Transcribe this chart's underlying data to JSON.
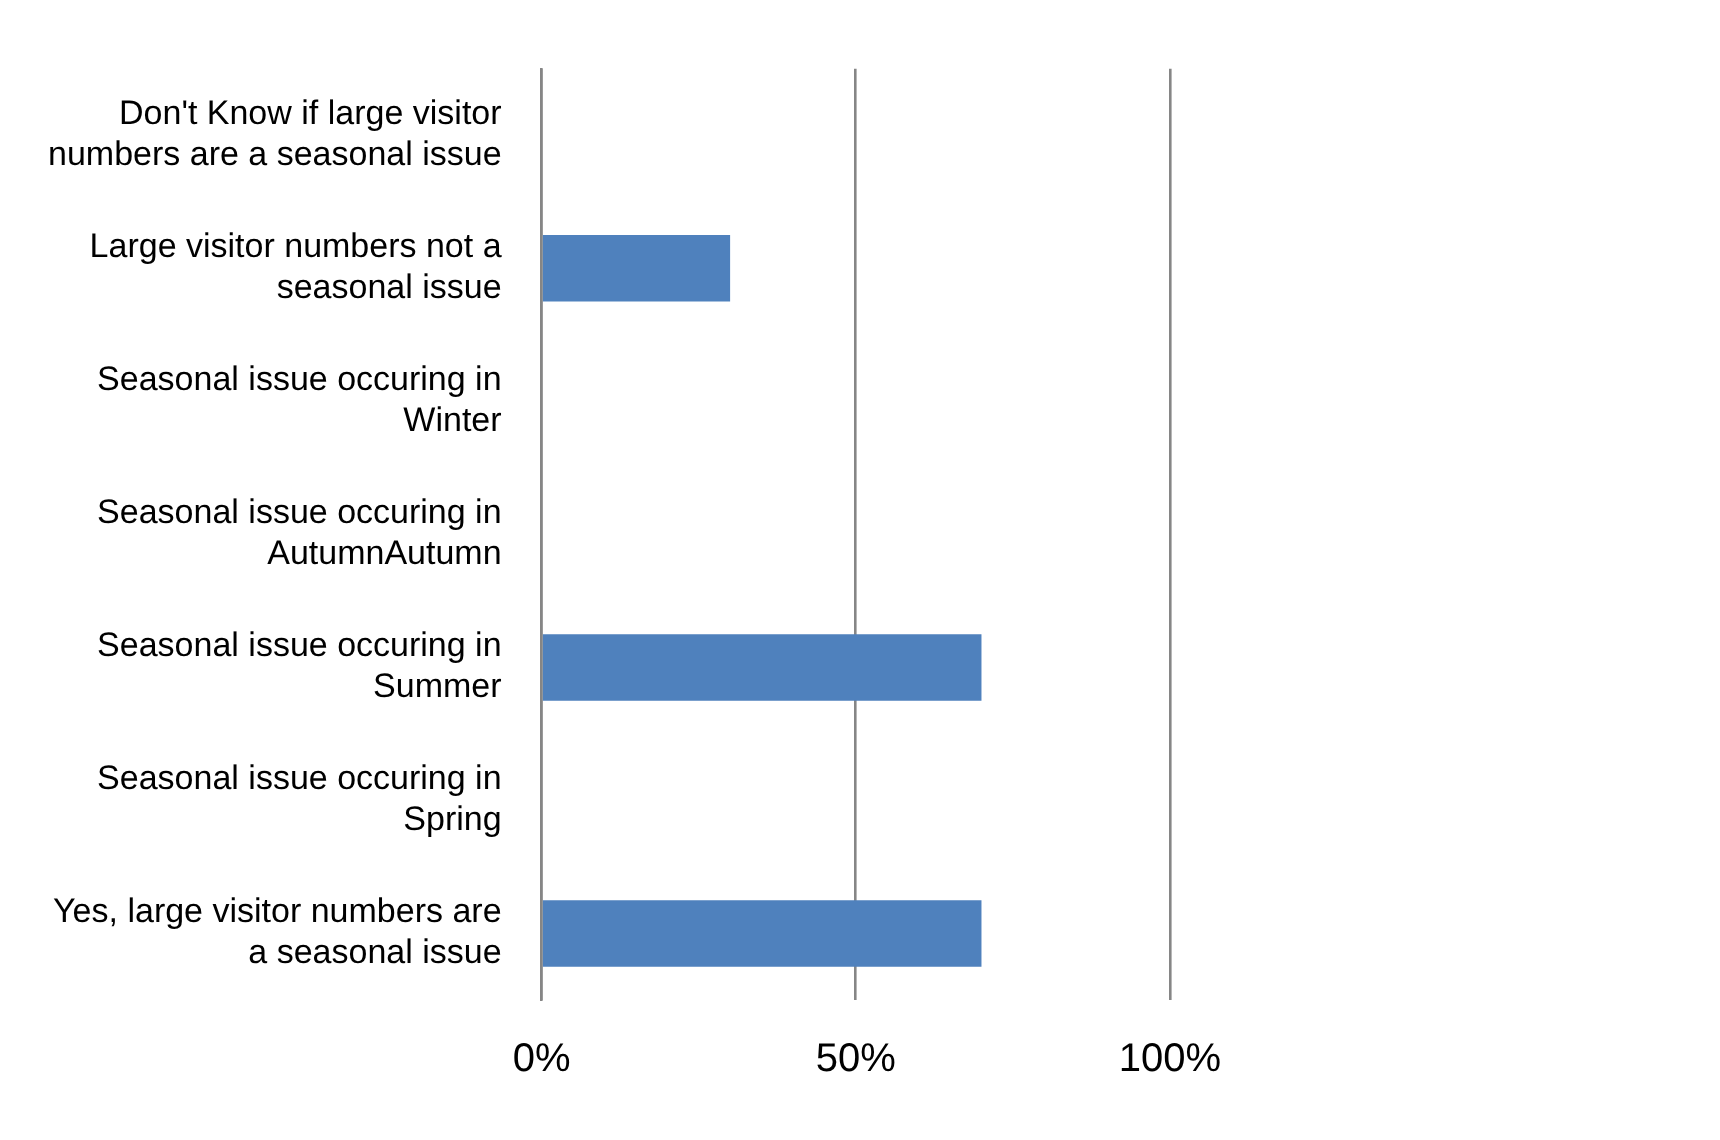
{
  "chart_data": {
    "type": "bar",
    "orientation": "horizontal",
    "categories": [
      "Don't Know if large visitor numbers are a seasonal issue",
      "Large visitor numbers not a seasonal issue",
      "Seasonal issue occuring in Winter",
      "Seasonal issue occuring in AutumnAutumn",
      "Seasonal issue occuring in Summer",
      "Seasonal issue occuring in Spring",
      "Yes, large visitor numbers are a seasonal issue"
    ],
    "values": [
      0,
      30,
      0,
      0,
      70,
      0,
      70
    ],
    "color": "#4f81bd",
    "xlim": [
      0,
      100
    ],
    "xticks": [
      {
        "value": 0,
        "label": "0%"
      },
      {
        "value": 50,
        "label": "50%"
      },
      {
        "value": 100,
        "label": "100%"
      }
    ],
    "grid": "x",
    "legend": false
  }
}
